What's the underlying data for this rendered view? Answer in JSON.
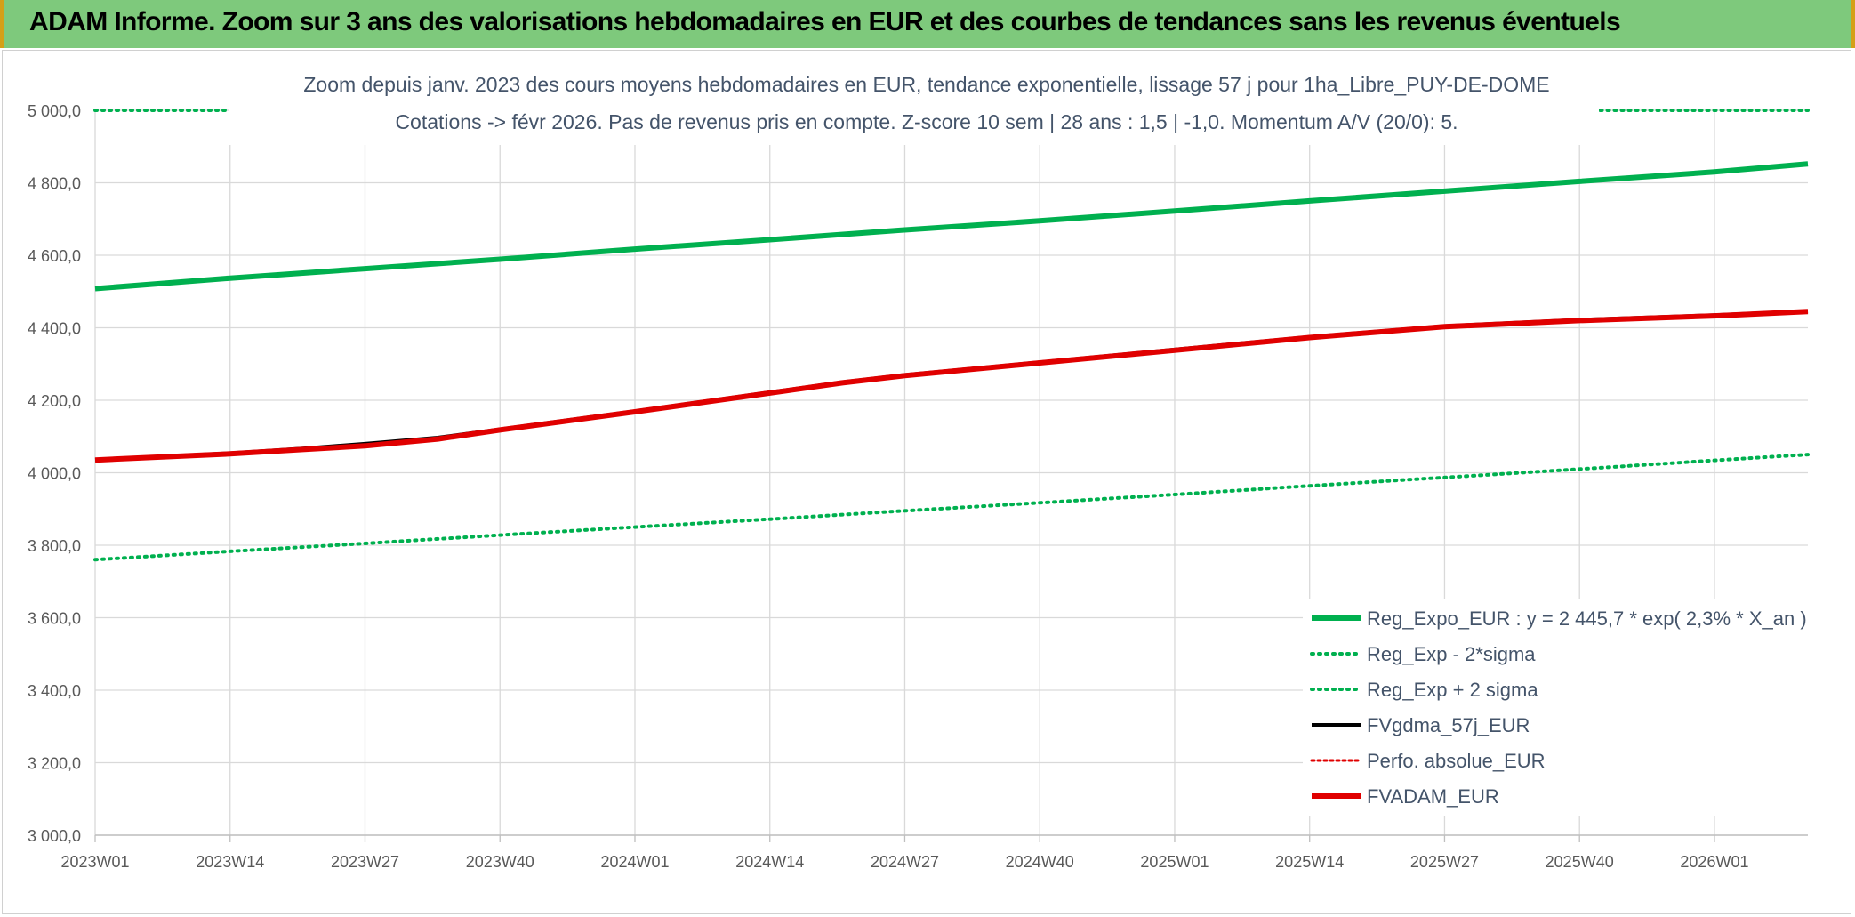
{
  "banner": {
    "title": "ADAM Informe. Zoom sur 3 ans des valorisations hebdomadaires en EUR et des courbes de tendances sans les revenus éventuels"
  },
  "colors": {
    "banner": "#7ec97c",
    "banner_border": "#d4a017",
    "green": "#00b04f",
    "black": "#000000",
    "red": "#e00000",
    "title_text": "#44546a",
    "axis_text": "#595959",
    "grid": "#d9d9d9"
  },
  "chart_data": {
    "type": "line",
    "title": "Zoom depuis janv. 2023 des cours moyens hebdomadaires en EUR, tendance exponentielle, lissage 57 j pour 1ha_Libre_PUY-DE-DOME",
    "subtitle": "Cotations -> févr 2026. Pas de revenus pris en compte. Z-score 10 sem | 28 ans : 1,5 | -1,0. Momentum A/V (20/0): 5.",
    "x_tick_labels": [
      "2023W01",
      "2023W14",
      "2023W27",
      "2023W40",
      "2024W01",
      "2024W14",
      "2024W27",
      "2024W40",
      "2025W01",
      "2025W14",
      "2025W27",
      "2025W40",
      "2026W01"
    ],
    "x_range_weeks": [
      0,
      165
    ],
    "ylim": [
      3000,
      5000
    ],
    "y_ticks": [
      3000,
      3200,
      3400,
      3600,
      3800,
      4000,
      4200,
      4400,
      4600,
      4800,
      5000
    ],
    "y_tick_labels": [
      "3 000,0",
      "3 200,0",
      "3 400,0",
      "3 600,0",
      "3 800,0",
      "4 000,0",
      "4 200,0",
      "4 400,0",
      "4 600,0",
      "4 800,0",
      "5 000,0"
    ],
    "grid": true,
    "legend_position": "bottom-right",
    "series": [
      {
        "name": "Reg_Expo_EUR : y = 2 445,7 * exp( 2,3% *  X_an )",
        "color": "#00b04f",
        "style": "solid",
        "width": 6,
        "x": [
          0,
          13,
          26,
          39,
          52,
          65,
          78,
          91,
          104,
          117,
          130,
          143,
          156,
          165
        ],
        "y": [
          4508,
          4537,
          4563,
          4589,
          4617,
          4643,
          4670,
          4695,
          4722,
          4750,
          4777,
          4804,
          4830,
          4852
        ]
      },
      {
        "name": "Reg_Exp - 2*sigma",
        "color": "#00b04f",
        "style": "dotted",
        "width": 4,
        "x": [
          0,
          13,
          26,
          39,
          52,
          65,
          78,
          91,
          104,
          117,
          130,
          143,
          156,
          165
        ],
        "y": [
          3760,
          3783,
          3805,
          3828,
          3850,
          3872,
          3895,
          3917,
          3940,
          3964,
          3987,
          4010,
          4034,
          4050
        ]
      },
      {
        "name": "Reg_Exp + 2 sigma",
        "color": "#00b04f",
        "style": "dotted",
        "width": 4,
        "segments": [
          [
            0,
            14
          ],
          [
            145,
            165
          ]
        ],
        "x": [
          0,
          14,
          145,
          165
        ],
        "y": [
          5000,
          5000,
          5000,
          5000
        ]
      },
      {
        "name": "FVgdma_57j_EUR",
        "color": "#000000",
        "style": "solid",
        "width": 4,
        "x": [
          0,
          13,
          20,
          26,
          33,
          39,
          52,
          65,
          72,
          78,
          91,
          104,
          117,
          130,
          143,
          156,
          165
        ],
        "y": [
          4036,
          4054,
          4067,
          4080,
          4097,
          4120,
          4170,
          4222,
          4250,
          4270,
          4305,
          4340,
          4375,
          4405,
          4422,
          4435,
          4446
        ]
      },
      {
        "name": "Perfo. absolue_EUR",
        "color": "#e00000",
        "style": "dotted",
        "width": 3,
        "x": [],
        "y": []
      },
      {
        "name": "FVADAM_EUR",
        "color": "#e00000",
        "style": "solid",
        "width": 6,
        "x": [
          0,
          13,
          20,
          26,
          33,
          39,
          52,
          65,
          72,
          78,
          91,
          104,
          117,
          130,
          143,
          156,
          165
        ],
        "y": [
          4035,
          4052,
          4064,
          4074,
          4093,
          4118,
          4168,
          4220,
          4248,
          4268,
          4303,
          4338,
          4373,
          4403,
          4420,
          4433,
          4445
        ]
      }
    ]
  }
}
